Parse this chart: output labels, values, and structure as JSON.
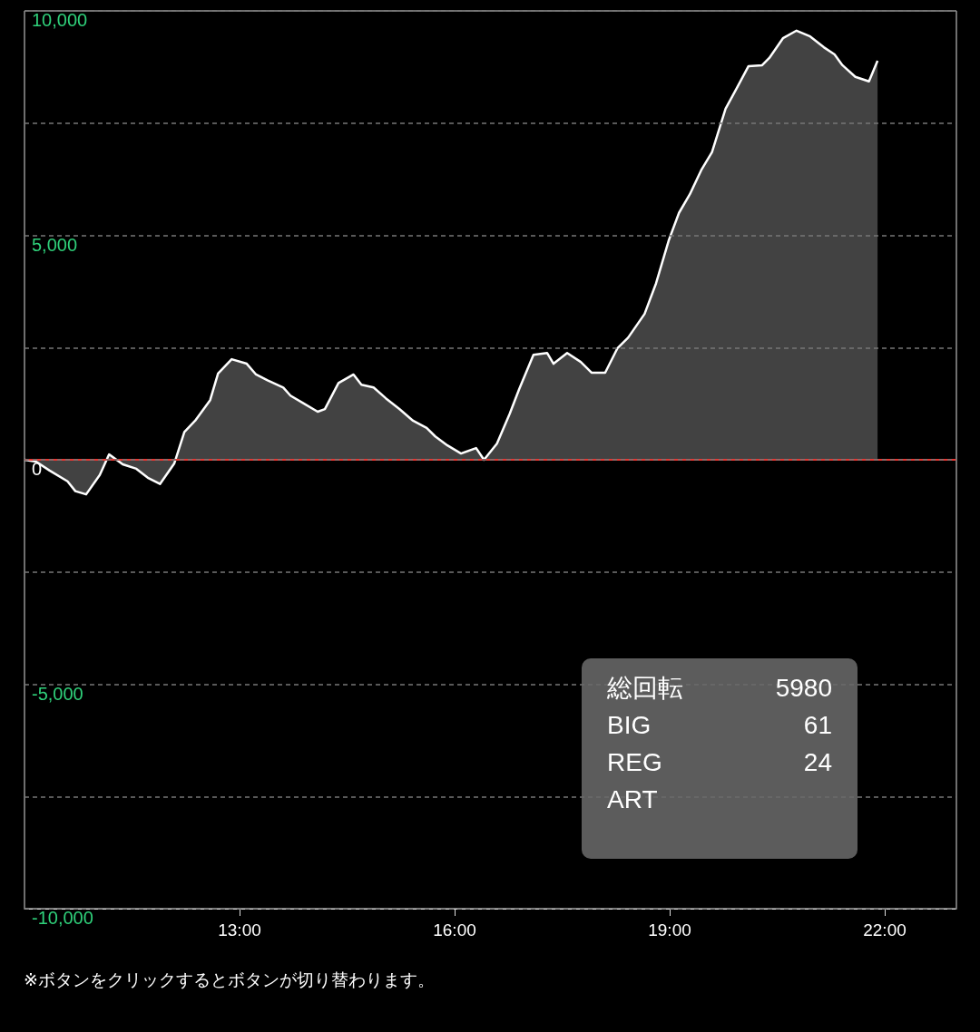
{
  "chart_data": {
    "type": "area",
    "x": [
      10.0,
      10.16,
      10.35,
      10.6,
      10.71,
      10.86,
      11.05,
      11.18,
      11.37,
      11.56,
      11.72,
      11.89,
      12.09,
      12.23,
      12.38,
      12.59,
      12.7,
      12.89,
      13.1,
      13.23,
      13.39,
      13.61,
      13.71,
      13.9,
      14.09,
      14.19,
      14.38,
      14.59,
      14.7,
      14.87,
      15.04,
      15.23,
      15.42,
      15.61,
      15.73,
      15.9,
      16.09,
      16.3,
      16.41,
      16.59,
      16.77,
      16.9,
      17.1,
      17.29,
      17.38,
      17.57,
      17.76,
      17.91,
      18.1,
      18.27,
      18.42,
      18.65,
      18.81,
      18.99,
      19.13,
      19.28,
      19.44,
      19.59,
      19.78,
      19.94,
      20.1,
      20.29,
      20.39,
      20.58,
      20.77,
      20.96,
      21.15,
      21.3,
      21.41,
      21.59,
      21.78,
      21.9
    ],
    "series": [
      {
        "color": "#ffffff",
        "values": [
          0,
          -40,
          -240,
          -480,
          -700,
          -770,
          -340,
          120,
          -100,
          -200,
          -400,
          -540,
          -80,
          620,
          870,
          1330,
          1920,
          2240,
          2140,
          1900,
          1770,
          1610,
          1430,
          1250,
          1070,
          1130,
          1710,
          1900,
          1670,
          1610,
          1370,
          1130,
          870,
          710,
          520,
          320,
          140,
          260,
          0,
          360,
          1030,
          1570,
          2340,
          2380,
          2140,
          2380,
          2180,
          1940,
          1940,
          2480,
          2720,
          3250,
          3930,
          4900,
          5500,
          5910,
          6450,
          6850,
          7820,
          8290,
          8770,
          8790,
          8950,
          9390,
          9560,
          9430,
          9190,
          9030,
          8790,
          8530,
          8430,
          8890
        ]
      }
    ],
    "xlim": [
      10,
      23
    ],
    "xticks": [
      {
        "value": 13,
        "label": "13:00"
      },
      {
        "value": 16,
        "label": "16:00"
      },
      {
        "value": 19,
        "label": "19:00"
      },
      {
        "value": 22,
        "label": "22:00"
      }
    ],
    "ylim": [
      -10000,
      10000
    ],
    "yticks": [
      {
        "value": -10000,
        "label": "-10,000"
      },
      {
        "value": -7500,
        "label": null
      },
      {
        "value": -5000,
        "label": "-5,000"
      },
      {
        "value": -2500,
        "label": null
      },
      {
        "value": 0,
        "label": "0"
      },
      {
        "value": 2500,
        "label": null
      },
      {
        "value": 5000,
        "label": "5,000"
      },
      {
        "value": 7500,
        "label": null
      },
      {
        "value": 10000,
        "label": "10,000"
      }
    ],
    "grid": "y",
    "marker": "none",
    "ref_lines": [
      {
        "axis": "y",
        "value": 0,
        "color": "#e53935"
      }
    ],
    "annotations": [
      "総回転",
      "5980",
      "BIG",
      "61",
      "REG",
      "24",
      "ART",
      "※ボタンをクリックするとボタンが切り替わります。"
    ]
  }
}
